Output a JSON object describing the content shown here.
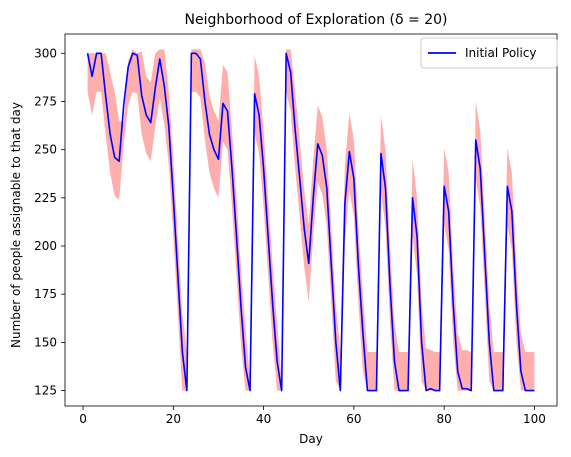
{
  "chart_data": {
    "type": "line",
    "title": "Neighborhood of Exploration (δ = 20)",
    "xlabel": "Day",
    "ylabel": "Number of people assignable to that day",
    "xlim": [
      -4,
      105
    ],
    "ylim": [
      117,
      310
    ],
    "xticks": [
      0,
      20,
      40,
      60,
      80,
      100
    ],
    "yticks": [
      125,
      150,
      175,
      200,
      225,
      250,
      275,
      300
    ],
    "grid": false,
    "legend_position": "top-right",
    "colors": {
      "line": "#0000ff",
      "band": "#ff6b6b"
    },
    "series": [
      {
        "name": "Initial Policy",
        "x": [
          1,
          2,
          3,
          4,
          5,
          6,
          7,
          8,
          9,
          10,
          11,
          12,
          13,
          14,
          15,
          16,
          17,
          18,
          19,
          20,
          21,
          22,
          23,
          24,
          25,
          26,
          27,
          28,
          29,
          30,
          31,
          32,
          33,
          34,
          35,
          36,
          37,
          38,
          39,
          40,
          41,
          42,
          43,
          44,
          45,
          46,
          47,
          48,
          49,
          50,
          51,
          52,
          53,
          54,
          55,
          56,
          57,
          58,
          59,
          60,
          61,
          62,
          63,
          64,
          65,
          66,
          67,
          68,
          69,
          70,
          71,
          72,
          73,
          74,
          75,
          76,
          77,
          78,
          79,
          80,
          81,
          82,
          83,
          84,
          85,
          86,
          87,
          88,
          89,
          90,
          91,
          92,
          93,
          94,
          95,
          96,
          97,
          98,
          99,
          100
        ],
        "values": [
          300,
          288,
          300,
          300,
          278,
          258,
          246,
          244,
          273,
          293,
          300,
          299,
          278,
          268,
          264,
          282,
          297,
          283,
          262,
          225,
          185,
          145,
          125,
          300,
          300,
          297,
          275,
          258,
          250,
          245,
          274,
          270,
          240,
          205,
          168,
          137,
          125,
          279,
          268,
          240,
          205,
          170,
          140,
          125,
          300,
          290,
          260,
          235,
          209,
          191,
          225,
          253,
          247,
          230,
          190,
          150,
          125,
          222,
          249,
          235,
          190,
          155,
          125,
          125,
          125,
          248,
          230,
          180,
          140,
          125,
          125,
          125,
          225,
          205,
          150,
          125,
          126,
          125,
          125,
          231,
          218,
          170,
          135,
          126,
          126,
          125,
          255,
          240,
          195,
          150,
          125,
          125,
          125,
          231,
          218,
          170,
          135,
          125,
          125,
          125
        ],
        "band_upper": [
          300,
          300,
          300,
          300,
          300,
          290,
          280,
          265,
          264,
          296,
          302,
          300,
          301,
          288,
          285,
          300,
          302,
          302,
          280,
          245,
          205,
          165,
          145,
          302,
          302,
          302,
          295,
          278,
          270,
          265,
          294,
          290,
          260,
          225,
          188,
          157,
          130,
          299,
          288,
          260,
          225,
          190,
          160,
          130,
          302,
          302,
          280,
          255,
          229,
          211,
          245,
          273,
          267,
          250,
          210,
          170,
          145,
          242,
          269,
          255,
          210,
          175,
          145,
          145,
          145,
          268,
          250,
          200,
          160,
          145,
          145,
          145,
          245,
          225,
          170,
          147,
          146,
          145,
          145,
          251,
          238,
          190,
          155,
          146,
          146,
          145,
          275,
          260,
          215,
          170,
          145,
          145,
          145,
          251,
          238,
          190,
          155,
          145,
          145,
          145
        ],
        "band_lower": [
          280,
          268,
          280,
          280,
          258,
          238,
          226,
          224,
          253,
          273,
          280,
          279,
          258,
          248,
          244,
          262,
          277,
          263,
          242,
          205,
          165,
          125,
          125,
          280,
          280,
          277,
          255,
          238,
          230,
          225,
          254,
          250,
          220,
          185,
          148,
          125,
          125,
          259,
          248,
          220,
          185,
          150,
          125,
          125,
          280,
          270,
          240,
          215,
          189,
          171,
          205,
          233,
          227,
          210,
          170,
          130,
          125,
          202,
          229,
          215,
          170,
          135,
          125,
          125,
          125,
          228,
          210,
          160,
          125,
          125,
          125,
          125,
          205,
          185,
          130,
          125,
          125,
          125,
          125,
          211,
          198,
          150,
          125,
          125,
          125,
          125,
          235,
          220,
          175,
          130,
          125,
          125,
          125,
          211,
          198,
          150,
          125,
          125,
          125,
          125
        ]
      }
    ]
  }
}
